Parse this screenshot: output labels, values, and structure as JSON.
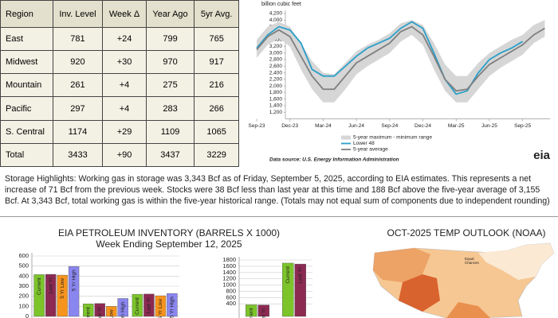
{
  "table": {
    "header": [
      "Region",
      "Inv. Level",
      "Week Δ",
      "Year Ago",
      "5yr Avg."
    ],
    "rows": [
      [
        "East",
        "781",
        "+24",
        "799",
        "765"
      ],
      [
        "Midwest",
        "920",
        "+30",
        "970",
        "917"
      ],
      [
        "Mountain",
        "261",
        "+4",
        "275",
        "216"
      ],
      [
        "Pacific",
        "297",
        "+4",
        "283",
        "266"
      ],
      [
        "S. Central",
        "1174",
        "+29",
        "1109",
        "1065"
      ],
      [
        "Total",
        "3433",
        "+90",
        "3437",
        "3229"
      ]
    ]
  },
  "highlights": "Storage Highlights: Working gas in storage was 3,343 Bcf as of Friday, September 5, 2025, according to EIA estimates. This represents a net increase of 71 Bcf from the previous week. Stocks were 38 Bcf less than last year at this time and 188 Bcf above the five-year average of 3,155 Bcf. At 3,343 Bcf, total working gas is within the five-year historical range. (Totals may not equal sum of components due to independent rounding)",
  "chart_data": [
    {
      "type": "line",
      "y_axis_label": "billion cubic feet",
      "categories": [
        "Sep-23",
        null,
        null,
        "Dec-23",
        null,
        null,
        "Mar-24",
        null,
        null,
        "Jun-24",
        null,
        null,
        "Sep-24",
        null,
        null,
        "Dec-24",
        null,
        null,
        "Mar-25",
        null,
        null,
        "Jun-25",
        null,
        null,
        "Sep-25",
        null,
        null
      ],
      "ylim": [
        1000,
        4200
      ],
      "yticks": [
        {
          "value": 1200,
          "label": "1,200"
        },
        {
          "value": 1400,
          "label": "1,400"
        },
        {
          "value": 1600,
          "label": "1,600"
        },
        {
          "value": 1800,
          "label": "1,800"
        },
        {
          "value": 2000,
          "label": "2,000"
        },
        {
          "value": 2200,
          "label": "2,200"
        },
        {
          "value": 2400,
          "label": "2,400"
        },
        {
          "value": 2600,
          "label": "2,600"
        },
        {
          "value": 2800,
          "label": "2,800"
        },
        {
          "value": 3000,
          "label": "3,000"
        },
        {
          "value": 3200,
          "label": "3,200"
        },
        {
          "value": 3400,
          "label": "3,400"
        },
        {
          "value": 3600,
          "label": "3,600"
        },
        {
          "value": 3800,
          "label": "3,800"
        },
        {
          "value": 4000,
          "label": "4,000"
        },
        {
          "value": 4200,
          "label": "4,200"
        }
      ],
      "series": [
        {
          "name": "5-year maximum - minimum range",
          "type": "range",
          "color": "#d6d6d6",
          "high": [
            3400,
            3800,
            3950,
            3800,
            3300,
            2750,
            2400,
            2350,
            2700,
            3050,
            3250,
            3400,
            3600,
            3900,
            4000,
            3850,
            3300,
            2650,
            2300,
            2300,
            2700,
            3000,
            3200,
            3400,
            3550,
            3850,
            4000
          ],
          "low": [
            2850,
            3250,
            3450,
            3200,
            2500,
            1900,
            1500,
            1500,
            1900,
            2350,
            2600,
            2800,
            3000,
            3350,
            3550,
            3250,
            2500,
            1850,
            1500,
            1500,
            1900,
            2300,
            2550,
            2750,
            2950,
            3300,
            3500
          ]
        },
        {
          "name": "Lower 48",
          "color": "#2a9fc9",
          "values": [
            3150,
            3550,
            3800,
            3700,
            3300,
            2500,
            2300,
            2300,
            2600,
            2900,
            3150,
            3300,
            3450,
            3750,
            3950,
            3750,
            3000,
            2200,
            1750,
            1850,
            2400,
            2800,
            3000,
            3150,
            3350,
            null,
            null
          ]
        },
        {
          "name": "5-year average",
          "color": "#7f7f7f",
          "values": [
            3100,
            3500,
            3700,
            3500,
            2900,
            2300,
            1900,
            1900,
            2300,
            2700,
            2900,
            3100,
            3300,
            3650,
            3800,
            3550,
            2900,
            2200,
            1850,
            1900,
            2300,
            2650,
            2850,
            3050,
            3250,
            3550,
            3750
          ]
        }
      ],
      "source": "Data source: U.S. Energy Information Administration",
      "logo": "eia"
    },
    {
      "type": "bar",
      "title": "EIA PETROLEUM INVENTORY (BARRELS X 1000)",
      "subtitle": "Week Ending September 12, 2025",
      "categories": [
        null,
        null,
        null
      ],
      "ylim": [
        0,
        600
      ],
      "yticks": [
        0,
        100,
        200,
        300,
        400,
        500,
        600
      ],
      "series": [
        {
          "name": "Current",
          "color": "#7cc42a",
          "values": [
            415,
            125,
            220
          ]
        },
        {
          "name": "Last Yr",
          "color": "#8c2a52",
          "values": [
            418,
            128,
            222
          ]
        },
        {
          "name": "5 Yr Low",
          "color": "#f7941d",
          "values": [
            410,
            100,
            205
          ]
        },
        {
          "name": "5 Yr High",
          "color": "#8a86f0",
          "values": [
            495,
            178,
            228
          ]
        }
      ]
    },
    {
      "type": "bar",
      "categories": [
        null,
        null
      ],
      "ylim": [
        0,
        1800
      ],
      "yticks": [
        400,
        600,
        800,
        1000,
        1200,
        1400,
        1600,
        1800
      ],
      "series": [
        {
          "name": "Current",
          "color": "#7cc42a",
          "values": [
            370,
            1700
          ]
        },
        {
          "name": "Last Yr",
          "color": "#8c2a52",
          "values": [
            365,
            1670
          ]
        }
      ]
    }
  ],
  "map": {
    "title": "OCT-2025 TEMP OUTLOOK (NOAA)"
  }
}
